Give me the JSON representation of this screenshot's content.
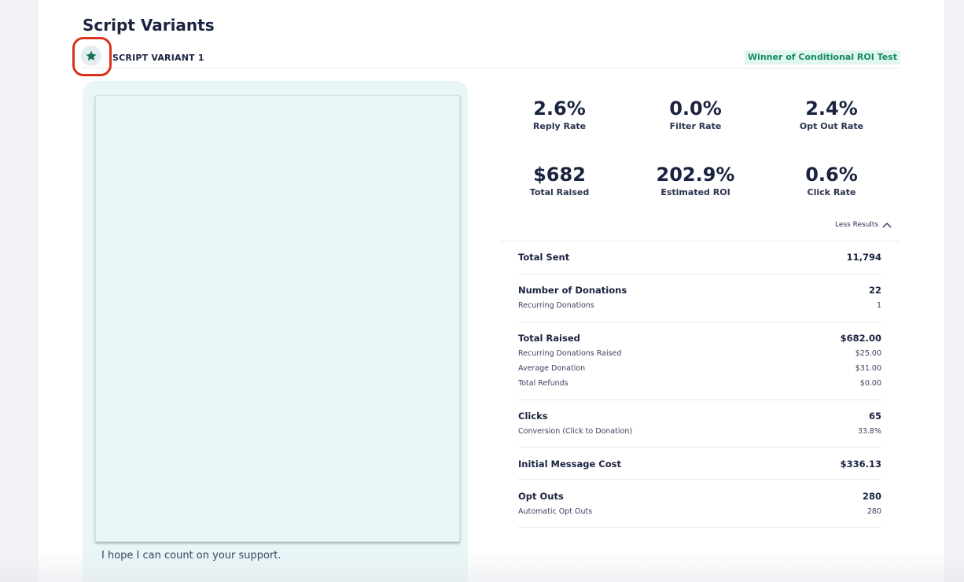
{
  "section_title": "Script Variants",
  "variant": {
    "label": "SCRIPT VARIANT 1",
    "badge": "Winner of Conditional ROI Test",
    "star_icon": "star-icon"
  },
  "preview": {
    "text": "I hope I can count on your support."
  },
  "stats": [
    {
      "value": "2.6%",
      "label": "Reply Rate"
    },
    {
      "value": "0.0%",
      "label": "Filter Rate"
    },
    {
      "value": "2.4%",
      "label": "Opt Out Rate"
    },
    {
      "value": "$682",
      "label": "Total Raised"
    },
    {
      "value": "202.9%",
      "label": "Estimated ROI"
    },
    {
      "value": "0.6%",
      "label": "Click Rate"
    }
  ],
  "toggle_label": "Less Results",
  "results": {
    "total_sent": {
      "label": "Total Sent",
      "value": "11,794"
    },
    "donations": {
      "label": "Number of Donations",
      "value": "22",
      "sub": [
        {
          "label": "Recurring Donations",
          "value": "1"
        }
      ]
    },
    "raised": {
      "label": "Total Raised",
      "value": "$682.00",
      "sub": [
        {
          "label": "Recurring Donations Raised",
          "value": "$25.00"
        },
        {
          "label": "Average Donation",
          "value": "$31.00"
        },
        {
          "label": "Total Refunds",
          "value": "$0.00"
        }
      ]
    },
    "clicks": {
      "label": "Clicks",
      "value": "65",
      "sub": [
        {
          "label": "Conversion (Click to Donation)",
          "value": "33.8%"
        }
      ]
    },
    "cost": {
      "label": "Initial Message Cost",
      "value": "$336.13"
    },
    "opt_outs": {
      "label": "Opt Outs",
      "value": "280",
      "sub": [
        {
          "label": "Automatic Opt Outs",
          "value": "280"
        }
      ]
    }
  },
  "colors": {
    "accent_teal": "#138a5e",
    "badge_bg": "#e0f6ee",
    "highlight_ring": "#d9321e",
    "preview_bg": "#e9f6f8"
  }
}
